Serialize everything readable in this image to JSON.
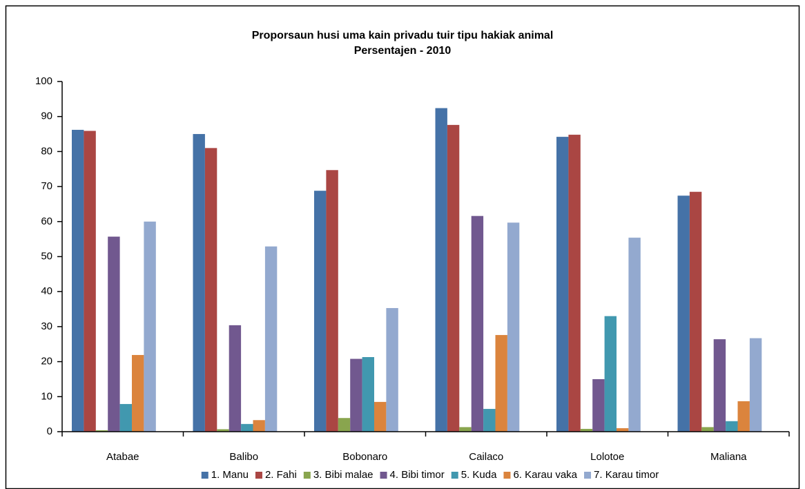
{
  "chart_data": {
    "type": "bar",
    "title": "Proporsaun husi uma kain privadu tuir tipu hakiak animal",
    "subtitle": "Persentajen - 2010",
    "categories": [
      "Atabae",
      "Balibo",
      "Bobonaro",
      "Cailaco",
      "Lolotoe",
      "Maliana"
    ],
    "series": [
      {
        "name": "1. Manu",
        "color": "#4572a7",
        "values": [
          86.2,
          85.0,
          68.8,
          92.4,
          84.2,
          67.4
        ]
      },
      {
        "name": "2. Fahi",
        "color": "#aa4643",
        "values": [
          85.9,
          81.0,
          74.7,
          87.6,
          84.8,
          68.5
        ]
      },
      {
        "name": "3. Bibi malae",
        "color": "#89a54e",
        "values": [
          0.4,
          0.7,
          3.9,
          1.3,
          0.8,
          1.3
        ]
      },
      {
        "name": "4. Bibi timor",
        "color": "#71588f",
        "values": [
          55.7,
          30.4,
          20.8,
          61.6,
          15.0,
          26.4
        ]
      },
      {
        "name": "5. Kuda",
        "color": "#4198af",
        "values": [
          7.9,
          2.2,
          21.3,
          6.5,
          33.0,
          3.0
        ]
      },
      {
        "name": "6. Karau vaka",
        "color": "#db843d",
        "values": [
          21.9,
          3.3,
          8.5,
          27.6,
          1.0,
          8.7
        ]
      },
      {
        "name": "7. Karau timor",
        "color": "#93a9cf",
        "values": [
          60.0,
          52.9,
          35.3,
          59.7,
          55.4,
          26.7
        ]
      }
    ],
    "ylim": [
      0,
      100
    ],
    "yticks": [
      0,
      10,
      20,
      30,
      40,
      50,
      60,
      70,
      80,
      90,
      100
    ],
    "grid": false,
    "legend": "bottom"
  }
}
